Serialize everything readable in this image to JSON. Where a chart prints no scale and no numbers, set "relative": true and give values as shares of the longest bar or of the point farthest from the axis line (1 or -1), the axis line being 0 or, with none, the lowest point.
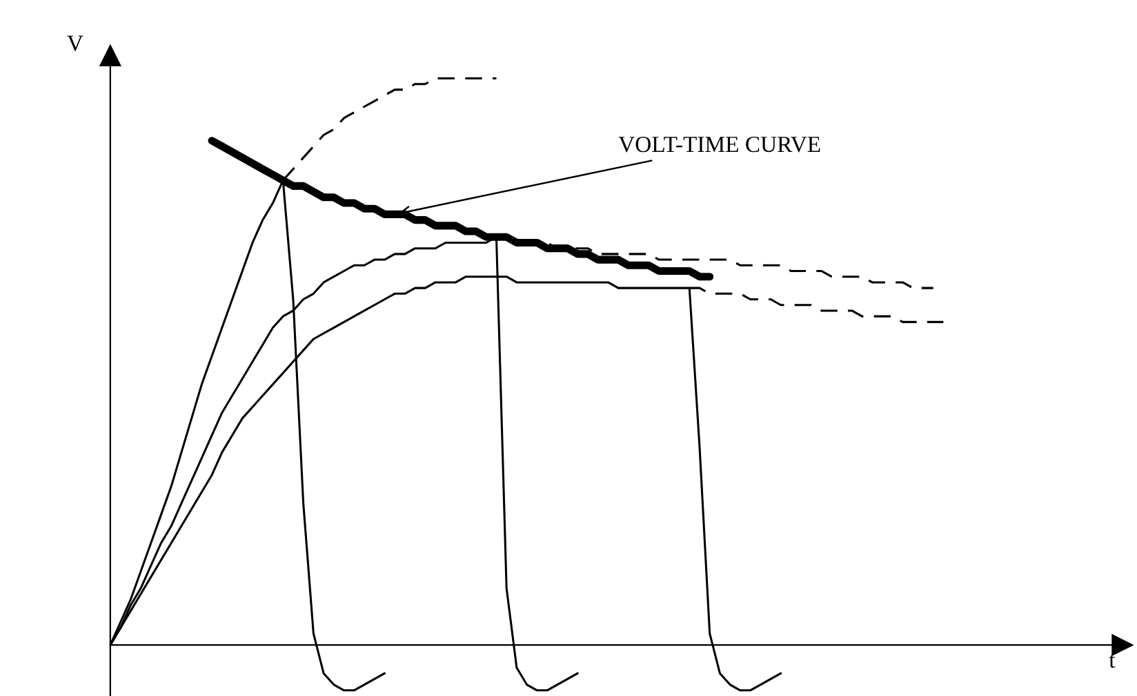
{
  "chart_data": {
    "type": "line",
    "relative": true,
    "ylabel": "V",
    "marker": "none",
    "categories": [
      null,
      null,
      null,
      null,
      null,
      null,
      null,
      null,
      null,
      null,
      null,
      null,
      null,
      null,
      null,
      null,
      null,
      null,
      null,
      null,
      null,
      null,
      null,
      null,
      null,
      null,
      null,
      null,
      null,
      null,
      null,
      null,
      null,
      null,
      null,
      null,
      null,
      null,
      null,
      null,
      null,
      null,
      null,
      null,
      null,
      null,
      null,
      null,
      null,
      null,
      null,
      null,
      null,
      null,
      null,
      null,
      null,
      null,
      null,
      null,
      null,
      null,
      null,
      null,
      null,
      null,
      null,
      null,
      null,
      null,
      null,
      null,
      null,
      null,
      null,
      null,
      null,
      null,
      null,
      null,
      null,
      null,
      null
    ],
    "series": [
      {
        "color": "#000000",
        "line_style": "solid",
        "values": [
          null,
          null,
          null,
          null,
          null,
          null,
          null,
          null,
          null,
          null,
          0.89,
          0.88,
          0.87,
          0.86,
          0.85,
          0.84,
          0.83,
          0.82,
          0.81,
          0.81,
          0.8,
          0.79,
          0.79,
          0.78,
          0.78,
          0.77,
          0.77,
          0.76,
          0.76,
          0.76,
          0.75,
          0.75,
          0.74,
          0.74,
          0.74,
          0.73,
          0.73,
          0.72,
          0.72,
          0.72,
          0.71,
          0.71,
          0.71,
          0.7,
          0.7,
          0.7,
          0.69,
          0.69,
          0.68,
          0.68,
          0.68,
          0.67,
          0.67,
          0.67,
          0.66,
          0.66,
          0.66,
          0.66,
          0.65,
          0.65,
          null,
          null,
          null,
          null,
          null,
          null,
          null,
          null,
          null,
          null,
          null,
          null,
          null,
          null,
          null,
          null,
          null,
          null,
          null,
          null,
          null,
          null,
          null
        ]
      },
      {
        "color": "#000000",
        "line_style": "solid",
        "values": [
          0,
          0.04,
          0.08,
          0.13,
          0.18,
          0.23,
          0.28,
          0.34,
          0.4,
          0.46,
          0.51,
          0.56,
          0.61,
          0.66,
          0.71,
          0.75,
          0.78,
          0.82,
          0.61,
          0.25,
          0.02,
          -0.05,
          -0.07,
          -0.08,
          -0.08,
          -0.07,
          -0.06,
          -0.05,
          null,
          null,
          null,
          null,
          null,
          null,
          null,
          null,
          null,
          null,
          null,
          null,
          null,
          null,
          null,
          null,
          null,
          null,
          null,
          null,
          null,
          null,
          null,
          null,
          null,
          null,
          null,
          null,
          null,
          null,
          null,
          null,
          null,
          null,
          null,
          null,
          null,
          null,
          null,
          null,
          null,
          null,
          null,
          null,
          null,
          null,
          null,
          null,
          null,
          null,
          null,
          null,
          null,
          null,
          null
        ]
      },
      {
        "color": "#000000",
        "line_style": "solid",
        "values": [
          0,
          0.03,
          0.07,
          0.1,
          0.14,
          0.18,
          0.21,
          0.25,
          0.29,
          0.33,
          0.37,
          0.41,
          0.44,
          0.47,
          0.5,
          0.53,
          0.56,
          0.58,
          0.59,
          0.61,
          0.62,
          0.64,
          0.65,
          0.66,
          0.67,
          0.67,
          0.68,
          0.68,
          0.69,
          0.69,
          0.7,
          0.7,
          0.7,
          0.71,
          0.71,
          0.71,
          0.71,
          0.71,
          0.72,
          0.1,
          -0.04,
          -0.07,
          -0.08,
          -0.08,
          -0.07,
          -0.06,
          -0.05,
          null,
          null,
          null,
          null,
          null,
          null,
          null,
          null,
          null,
          null,
          null,
          null,
          null,
          null,
          null,
          null,
          null,
          null,
          null,
          null,
          null,
          null,
          null,
          null,
          null,
          null,
          null,
          null,
          null,
          null,
          null,
          null,
          null,
          null,
          null,
          null
        ]
      },
      {
        "color": "#000000",
        "line_style": "solid",
        "values": [
          0,
          0.03,
          0.06,
          0.09,
          0.12,
          0.15,
          0.18,
          0.21,
          0.24,
          0.27,
          0.3,
          0.34,
          0.37,
          0.4,
          0.42,
          0.44,
          0.46,
          0.48,
          0.5,
          0.52,
          0.54,
          0.55,
          0.56,
          0.57,
          0.58,
          0.59,
          0.6,
          0.61,
          0.62,
          0.62,
          0.63,
          0.63,
          0.64,
          0.64,
          0.64,
          0.65,
          0.65,
          0.65,
          0.65,
          0.65,
          0.64,
          0.64,
          0.64,
          0.64,
          0.64,
          0.64,
          0.64,
          0.64,
          0.64,
          0.64,
          0.63,
          0.63,
          0.63,
          0.63,
          0.63,
          0.63,
          0.63,
          0.63,
          0.35,
          0.02,
          -0.05,
          -0.07,
          -0.08,
          -0.08,
          -0.07,
          -0.06,
          -0.05,
          null,
          null,
          null,
          null,
          null,
          null,
          null,
          null,
          null,
          null,
          null,
          null,
          null,
          null,
          null,
          null
        ]
      },
      {
        "color": "#000000",
        "line_style": "dashed",
        "values": [
          null,
          null,
          null,
          null,
          null,
          null,
          null,
          null,
          null,
          null,
          null,
          null,
          null,
          null,
          null,
          null,
          null,
          0.82,
          0.84,
          0.86,
          0.88,
          0.9,
          0.91,
          0.93,
          0.94,
          0.95,
          0.96,
          0.97,
          0.98,
          0.98,
          0.99,
          0.99,
          1.0,
          1.0,
          1.0,
          1.0,
          1.0,
          1.0,
          1.0,
          null,
          null,
          null,
          null,
          null,
          null,
          null,
          null,
          null,
          null,
          null,
          null,
          null,
          null,
          null,
          null,
          null,
          null,
          null,
          null,
          null,
          null,
          null,
          null,
          null,
          null,
          null,
          null,
          null,
          null,
          null,
          null,
          null,
          null,
          null,
          null,
          null,
          null,
          null,
          null,
          null,
          null,
          null,
          null
        ]
      },
      {
        "color": "#000000",
        "line_style": "dashed",
        "values": [
          null,
          null,
          null,
          null,
          null,
          null,
          null,
          null,
          null,
          null,
          null,
          null,
          null,
          null,
          null,
          null,
          null,
          null,
          null,
          null,
          null,
          null,
          null,
          null,
          null,
          null,
          null,
          null,
          null,
          null,
          null,
          null,
          null,
          null,
          null,
          null,
          null,
          null,
          0.72,
          0.72,
          0.71,
          0.71,
          0.71,
          0.71,
          0.7,
          0.7,
          0.7,
          0.7,
          0.69,
          0.69,
          0.69,
          0.69,
          0.69,
          0.69,
          0.68,
          0.68,
          0.68,
          0.68,
          0.68,
          0.68,
          0.68,
          0.68,
          0.67,
          0.67,
          0.67,
          0.67,
          0.67,
          0.66,
          0.66,
          0.66,
          0.66,
          0.65,
          0.65,
          0.65,
          0.65,
          0.64,
          0.64,
          0.64,
          0.64,
          0.63,
          0.63,
          0.63,
          null
        ]
      },
      {
        "color": "#000000",
        "line_style": "dashed",
        "values": [
          null,
          null,
          null,
          null,
          null,
          null,
          null,
          null,
          null,
          null,
          null,
          null,
          null,
          null,
          null,
          null,
          null,
          null,
          null,
          null,
          null,
          null,
          null,
          null,
          null,
          null,
          null,
          null,
          null,
          null,
          null,
          null,
          null,
          null,
          null,
          null,
          null,
          null,
          null,
          null,
          null,
          null,
          null,
          null,
          null,
          null,
          null,
          null,
          null,
          null,
          null,
          null,
          null,
          null,
          null,
          null,
          null,
          0.63,
          0.63,
          0.62,
          0.62,
          0.62,
          0.62,
          0.61,
          0.61,
          0.61,
          0.6,
          0.6,
          0.6,
          0.6,
          0.59,
          0.59,
          0.59,
          0.59,
          0.58,
          0.58,
          0.58,
          0.58,
          0.57,
          0.57,
          0.57,
          0.57,
          0.57
        ]
      }
    ],
    "annotations": [
      "VOLT-TIME CURVE",
      "t"
    ]
  }
}
